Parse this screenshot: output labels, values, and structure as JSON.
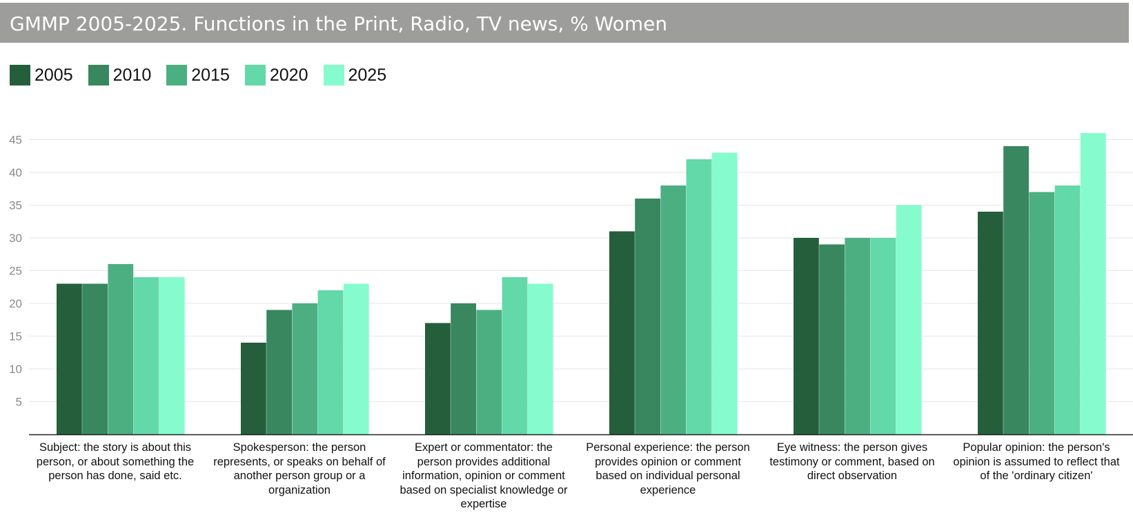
{
  "title": "GMMP 2005-2025. Functions in the Print, Radio, TV news, % Women",
  "colors": {
    "title_bg": "#9d9d9b",
    "series": [
      "#255e3b",
      "#38875f",
      "#4caf82",
      "#63d8a9",
      "#86fbcd"
    ],
    "grid": "#e6e6e6",
    "tick_text": "#8a8a8a",
    "axis": "#222222"
  },
  "chart_data": {
    "type": "bar",
    "title": "GMMP 2005-2025. Functions in the Print, Radio, TV news, % Women",
    "xlabel": "",
    "ylabel": "",
    "ylim": [
      0,
      47
    ],
    "yticks": [
      5,
      10,
      15,
      20,
      25,
      30,
      35,
      40,
      45
    ],
    "grid": true,
    "legend_position": "top-left",
    "categories": [
      "Subject: the story is about this person, or about something the person has done, said etc.",
      "Spokesperson: the person represents, or speaks on behalf of another person group or a organization",
      "Expert or commentator: the person provides additional information, opinion or comment based on specialist knowledge or expertise",
      "Personal experience: the person provides opinion or comment based on individual personal experience",
      "Eye witness: the person gives testimony or comment, based on direct observation",
      "Popular opinion: the person's opinion is assumed to reflect that of the 'ordinary citizen'"
    ],
    "series": [
      {
        "name": "2005",
        "values": [
          23,
          14,
          17,
          31,
          30,
          34
        ]
      },
      {
        "name": "2010",
        "values": [
          23,
          19,
          20,
          36,
          29,
          44
        ]
      },
      {
        "name": "2015",
        "values": [
          26,
          20,
          19,
          38,
          30,
          37
        ]
      },
      {
        "name": "2020",
        "values": [
          24,
          22,
          24,
          42,
          30,
          38
        ]
      },
      {
        "name": "2025",
        "values": [
          24,
          23,
          23,
          43,
          35,
          46
        ]
      }
    ]
  }
}
